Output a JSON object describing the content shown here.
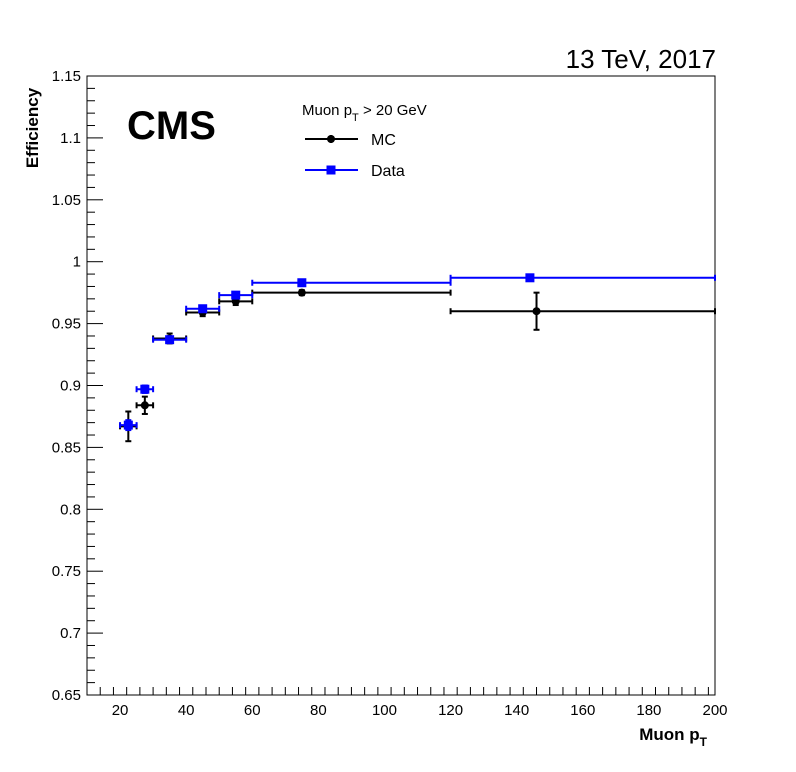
{
  "header": {
    "energy_label": "13 TeV, 2017"
  },
  "cms_label": "CMS",
  "legend": {
    "title_main": "Muon p",
    "title_sub": "T",
    "title_rest": " > 20 GeV"
  },
  "chart_data": {
    "type": "scatter",
    "title": "",
    "xlabel": "Muon p",
    "xlabel_sub": "T",
    "ylabel": "Efficiency",
    "xlim": [
      10,
      200
    ],
    "ylim": [
      0.65,
      1.15
    ],
    "x_ticks": [
      20,
      40,
      60,
      80,
      100,
      120,
      140,
      160,
      180,
      200
    ],
    "y_ticks": [
      0.65,
      0.7,
      0.75,
      0.8,
      0.85,
      0.9,
      0.95,
      1,
      1.05,
      1.1,
      1.15
    ],
    "y_tick_labels": [
      "0.65",
      "0.7",
      "0.75",
      "0.8",
      "0.85",
      "0.9",
      "0.95",
      "1",
      "1.05",
      "1.1",
      "1.15"
    ],
    "grid": false,
    "legend_position": "top-center",
    "series": [
      {
        "name": "MC",
        "color": "#000000",
        "marker": "circle",
        "points": [
          {
            "x": 22.5,
            "xlo": 20,
            "xhi": 25,
            "y": 0.867,
            "yerr": 0.012
          },
          {
            "x": 27.5,
            "xlo": 25,
            "xhi": 30,
            "y": 0.884,
            "yerr": 0.007
          },
          {
            "x": 35,
            "xlo": 30,
            "xhi": 40,
            "y": 0.938,
            "yerr": 0.004
          },
          {
            "x": 45,
            "xlo": 40,
            "xhi": 50,
            "y": 0.959,
            "yerr": 0.003
          },
          {
            "x": 55,
            "xlo": 50,
            "xhi": 60,
            "y": 0.968,
            "yerr": 0.003
          },
          {
            "x": 75,
            "xlo": 60,
            "xhi": 120,
            "y": 0.975,
            "yerr": 0.002
          },
          {
            "x": 146,
            "xlo": 120,
            "xhi": 200,
            "y": 0.96,
            "yerr": 0.015
          }
        ]
      },
      {
        "name": "Data",
        "color": "#0000ff",
        "marker": "square",
        "points": [
          {
            "x": 22.5,
            "xlo": 20,
            "xhi": 25,
            "y": 0.868,
            "yerr": 0.004
          },
          {
            "x": 27.5,
            "xlo": 25,
            "xhi": 30,
            "y": 0.897,
            "yerr": 0.003
          },
          {
            "x": 35,
            "xlo": 30,
            "xhi": 40,
            "y": 0.937,
            "yerr": 0.002
          },
          {
            "x": 45,
            "xlo": 40,
            "xhi": 50,
            "y": 0.962,
            "yerr": 0.002
          },
          {
            "x": 55,
            "xlo": 50,
            "xhi": 60,
            "y": 0.973,
            "yerr": 0.002
          },
          {
            "x": 75,
            "xlo": 60,
            "xhi": 120,
            "y": 0.983,
            "yerr": 0.001
          },
          {
            "x": 144,
            "xlo": 120,
            "xhi": 200,
            "y": 0.987,
            "yerr": 0.002
          }
        ]
      }
    ]
  }
}
